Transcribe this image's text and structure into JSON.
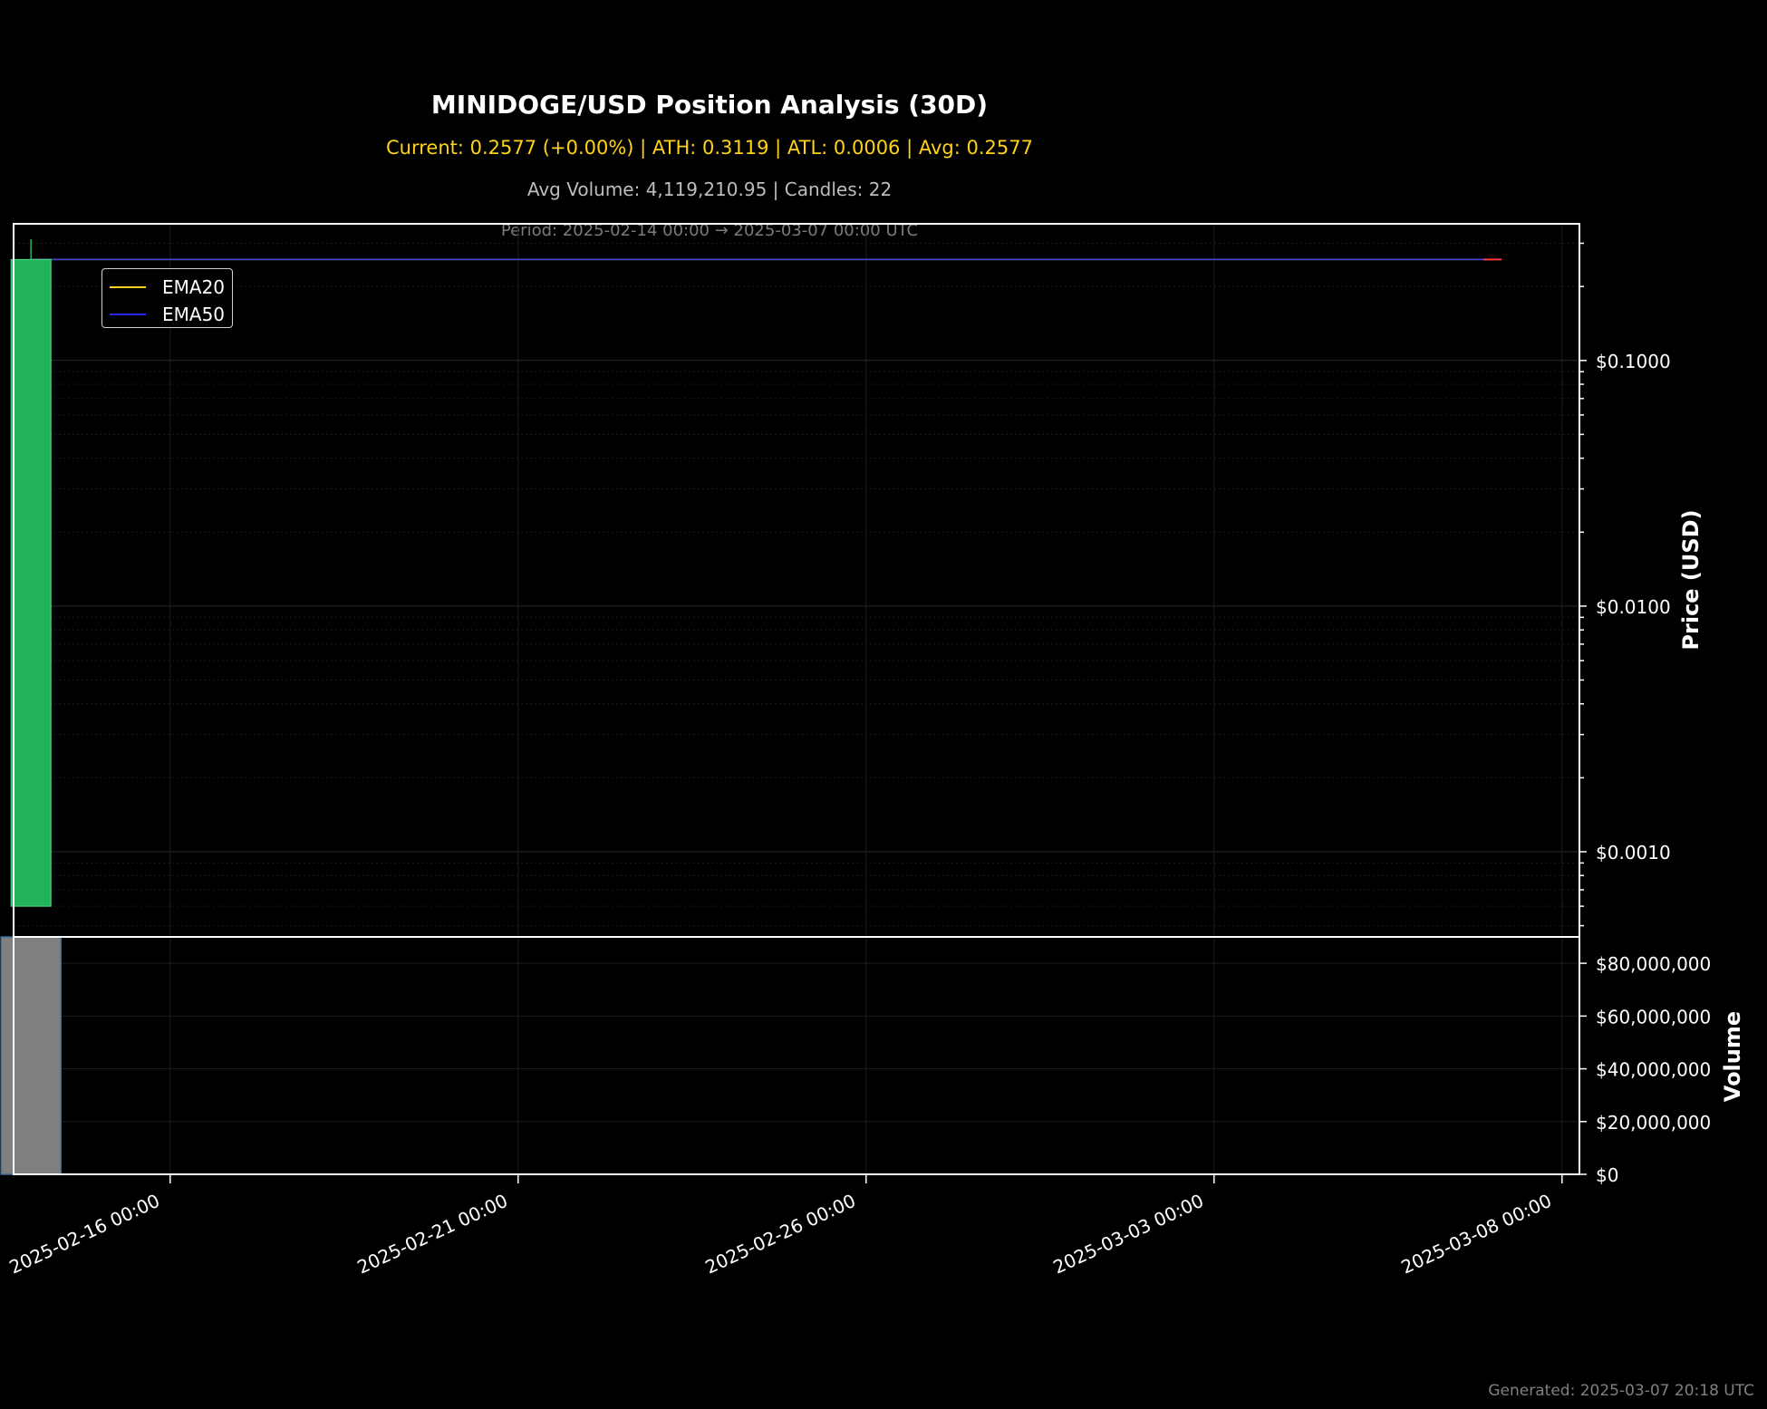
{
  "header": {
    "title": "MINIDOGE/USD Position Analysis (30D)",
    "stats": "Current: 0.2577 (+0.00%) | ATH: 0.3119 | ATL: 0.0006 | Avg: 0.2577",
    "volume_info": "Avg Volume: 4,119,210.95 | Candles: 22",
    "period": "Period: 2025-02-14 00:00 → 2025-03-07 00:00 UTC"
  },
  "footer": {
    "generated": "Generated: 2025-03-07 20:18 UTC"
  },
  "legend": [
    {
      "label": "EMA20",
      "color": "#ffd21a"
    },
    {
      "label": "EMA50",
      "color": "#2828ff"
    }
  ],
  "colors": {
    "background": "#000000",
    "up_candle": "#22b35a",
    "down_candle": "#ff3b3b",
    "volume_bar": "#808080",
    "volume_edge": "#3a6ea5",
    "grid": "#2a2a2a"
  },
  "chart_data": [
    {
      "type": "candlestick",
      "title": "MINIDOGE/USD Position Analysis (30D)",
      "ylabel": "Price (USD)",
      "yscale": "log",
      "ylim": [
        0.00045,
        0.36
      ],
      "xlim": [
        "2025-02-13 18:00",
        "2025-03-08 06:00"
      ],
      "yticks": [
        {
          "value": 0.001,
          "label": "$0.0010"
        },
        {
          "value": 0.01,
          "label": "$0.0100"
        },
        {
          "value": 0.1,
          "label": "$0.1000"
        }
      ],
      "xticks": [
        {
          "value": "2025-02-16 00:00",
          "label": "2025-02-16 00:00"
        },
        {
          "value": "2025-02-21 00:00",
          "label": "2025-02-21 00:00"
        },
        {
          "value": "2025-02-26 00:00",
          "label": "2025-02-26 00:00"
        },
        {
          "value": "2025-03-03 00:00",
          "label": "2025-03-03 00:00"
        },
        {
          "value": "2025-03-08 00:00",
          "label": "2025-03-08 00:00"
        }
      ],
      "candles": [
        {
          "time": "2025-02-14 00:00",
          "open": 0.0006,
          "high": 0.3119,
          "low": 0.0006,
          "close": 0.2577,
          "direction": "up"
        },
        {
          "time": "2025-03-07 00:00",
          "open": 0.2577,
          "high": 0.2577,
          "low": 0.2577,
          "close": 0.2577,
          "direction": "down"
        }
      ],
      "series": [
        {
          "name": "EMA20",
          "x": [
            "2025-02-14 00:00",
            "2025-03-07 00:00"
          ],
          "values": [
            0.2577,
            0.2577
          ]
        },
        {
          "name": "EMA50",
          "x": [
            "2025-02-14 00:00",
            "2025-03-07 00:00"
          ],
          "values": [
            0.2577,
            0.2577
          ]
        }
      ],
      "grid": true,
      "legend_position": "top-left"
    },
    {
      "type": "bar",
      "ylabel": "Volume",
      "ylim": [
        0,
        90000000
      ],
      "yticks": [
        {
          "value": 0,
          "label": "$0"
        },
        {
          "value": 20000000,
          "label": "$20,000,000"
        },
        {
          "value": 40000000,
          "label": "$40,000,000"
        },
        {
          "value": 60000000,
          "label": "$60,000,000"
        },
        {
          "value": 80000000,
          "label": "$80,000,000"
        }
      ],
      "x": [
        "2025-02-14 00:00"
      ],
      "values": [
        90000000
      ],
      "grid": true
    }
  ]
}
